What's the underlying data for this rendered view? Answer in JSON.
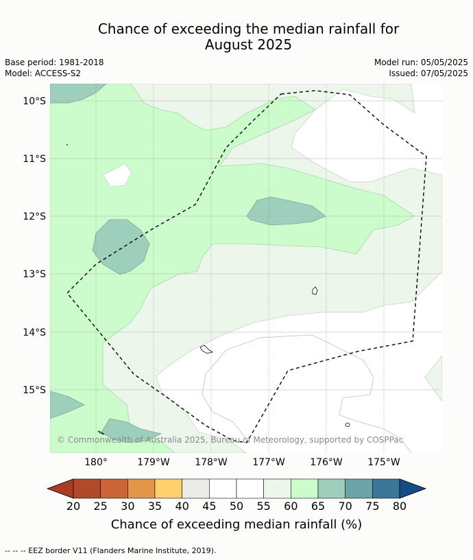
{
  "title_line1": "Chance of exceeding the median rainfall for",
  "title_line2": "August 2025",
  "meta_left": {
    "base_period": "Base period: 1981-2018",
    "model": "Model: ACCESS-S2"
  },
  "meta_right": {
    "model_run": "Model run: 05/05/2025",
    "issued": "Issued: 07/05/2025"
  },
  "map": {
    "lat_labels": [
      "10°S",
      "11°S",
      "12°S",
      "13°S",
      "14°S",
      "15°S"
    ],
    "lon_labels": [
      "180°",
      "179°W",
      "178°W",
      "177°W",
      "176°W",
      "175°W"
    ],
    "copyright": "© Commonwealth of Australia 2025, Bureau of Meteorology, supported by COSPPac",
    "colors": {
      "c55_60": "#ecf6ea",
      "c60_65": "#ccfccc",
      "c65_70": "#9dcfbc",
      "white": "#ffffff"
    }
  },
  "colorbar": {
    "ticks": [
      "20",
      "25",
      "30",
      "35",
      "40",
      "45",
      "50",
      "55",
      "60",
      "65",
      "70",
      "75",
      "80"
    ],
    "colors": [
      "#a83c24",
      "#b2492a",
      "#cc6535",
      "#e29748",
      "#ffd06c",
      "#ebebe8",
      "#ffffff",
      "#ffffff",
      "#ecf6ea",
      "#ccfccc",
      "#9dcfbc",
      "#6da3a6",
      "#3c7697",
      "#164c86"
    ],
    "label": "Chance of exceeding median rainfall (%)"
  },
  "footer": "--  --  -- EEZ border V11 (Flanders Marine Institute, 2019)."
}
